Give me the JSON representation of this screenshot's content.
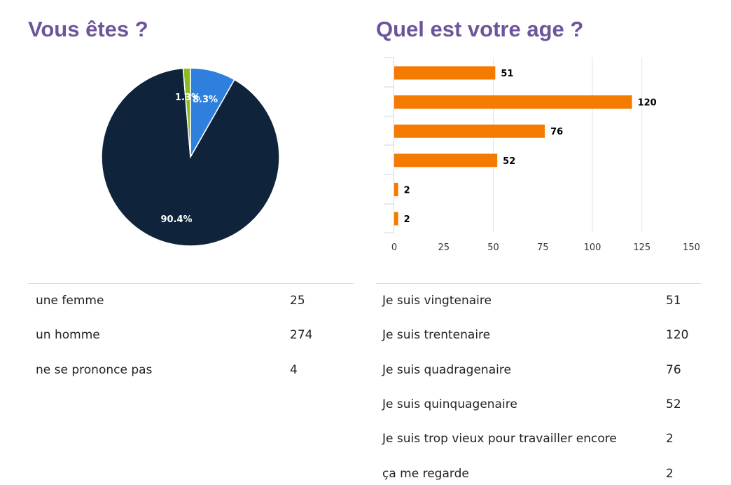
{
  "chart_data": [
    {
      "type": "pie",
      "title": "Vous êtes ?",
      "categories": [
        "une femme",
        "un homme",
        "ne se prononce pas"
      ],
      "values": [
        25,
        274,
        4
      ],
      "labels": [
        "8.3%",
        "90.4%",
        "1.3%"
      ],
      "colors": [
        "#2f80dd",
        "#0f233b",
        "#8dbb23"
      ]
    },
    {
      "type": "bar",
      "orientation": "horizontal",
      "title": "Quel est votre age ?",
      "categories": [
        "Je suis vingtenaire",
        "Je suis trentenaire",
        "Je suis quadragenaire",
        "Je suis quinquagenaire",
        "Je suis trop vieux pour travailler encore",
        "ça me regarde"
      ],
      "values": [
        51,
        120,
        76,
        52,
        2,
        2
      ],
      "xlim": [
        0,
        150
      ],
      "xticks": [
        "0",
        "25",
        "50",
        "75",
        "100",
        "125",
        "150"
      ],
      "grid": true,
      "color": "#f47a00"
    }
  ]
}
